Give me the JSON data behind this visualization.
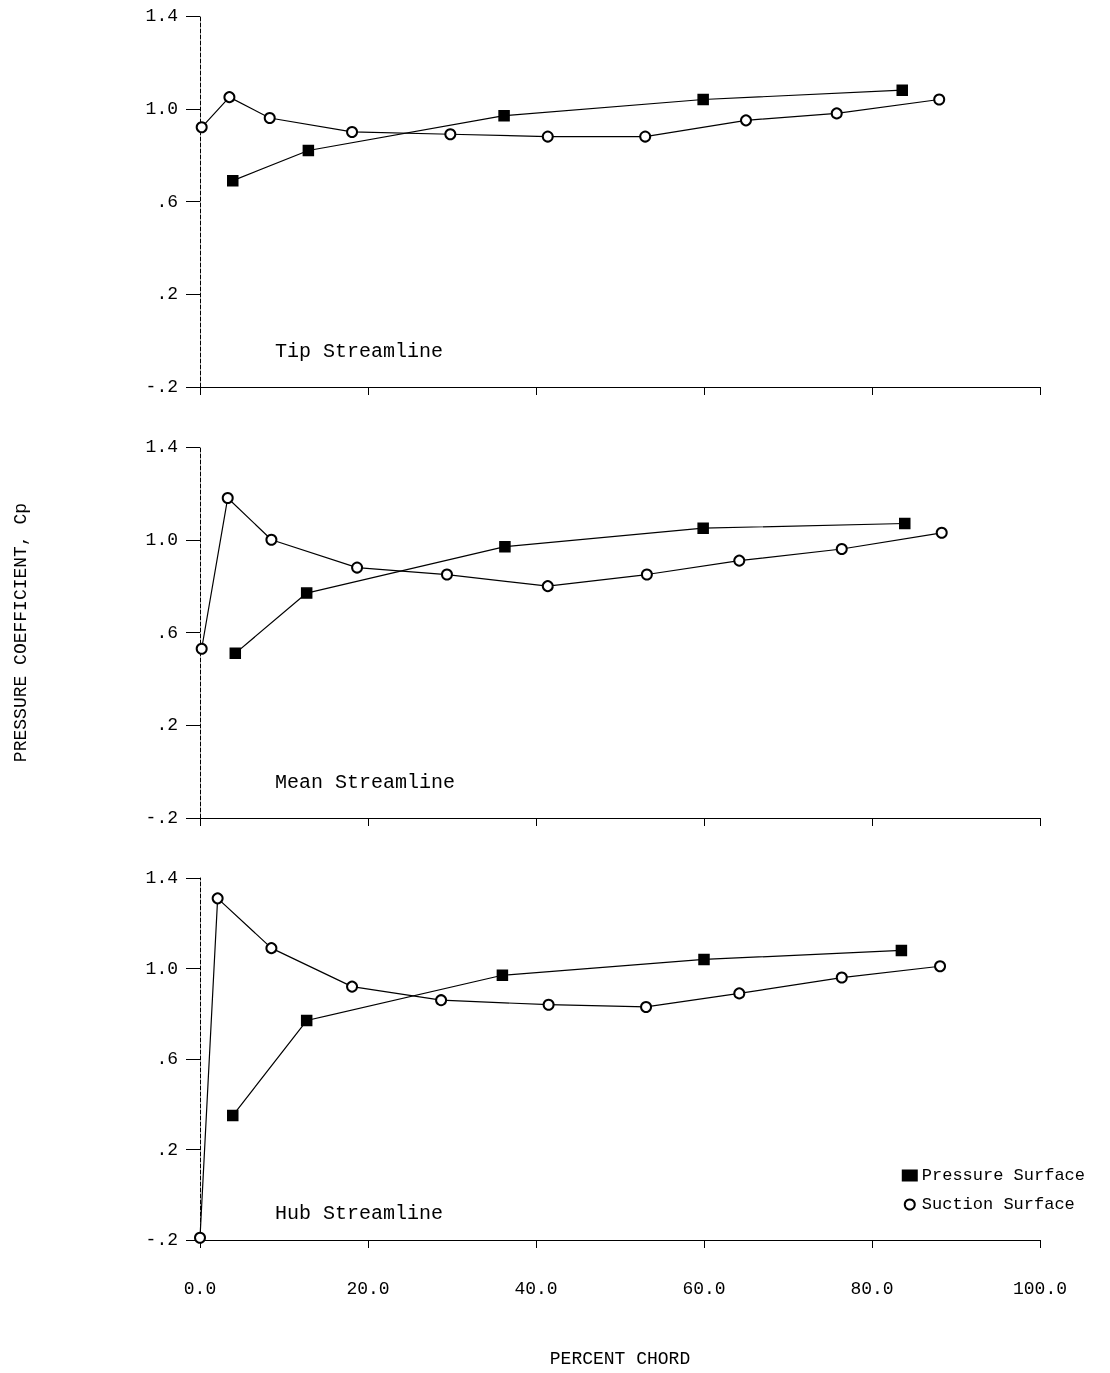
{
  "chart_data": [
    {
      "type": "line",
      "title": "Tip Streamline",
      "xlim": [
        0,
        100
      ],
      "xticks": [
        0,
        20,
        40,
        60,
        80,
        100
      ],
      "ylim": [
        -0.2,
        1.4
      ],
      "yticks": [
        {
          "value": -0.2,
          "label": "-.2"
        },
        {
          "value": 0.2,
          "label": ".2"
        },
        {
          "value": 0.6,
          "label": ".6"
        },
        {
          "value": 1.0,
          "label": "1.0"
        },
        {
          "value": 1.4,
          "label": "1.4"
        }
      ],
      "tick_labels": "y",
      "grid": false,
      "legend": false,
      "line_style": "solid",
      "series": [
        {
          "color": "#000000",
          "marker": "square",
          "x": [
            3.9,
            12.9,
            36.2,
            59.9,
            83.6
          ],
          "values": [
            0.69,
            0.82,
            0.97,
            1.04,
            1.08
          ]
        },
        {
          "color": "#000000",
          "marker": "circle",
          "x": [
            0.2,
            3.5,
            8.3,
            18.1,
            29.8,
            41.4,
            53,
            65,
            75.8,
            88
          ],
          "values": [
            0.92,
            1.05,
            0.96,
            0.9,
            0.89,
            0.88,
            0.88,
            0.95,
            0.98,
            1.04
          ]
        }
      ]
    },
    {
      "type": "line",
      "title": "Mean Streamline",
      "ylabel": "PRESSURE COEFFICIENT, Cp",
      "xlim": [
        0,
        100
      ],
      "xticks": [
        0,
        20,
        40,
        60,
        80,
        100
      ],
      "ylim": [
        -0.2,
        1.4
      ],
      "yticks": [
        {
          "value": -0.2,
          "label": "-.2"
        },
        {
          "value": 0.2,
          "label": ".2"
        },
        {
          "value": 0.6,
          "label": ".6"
        },
        {
          "value": 1.0,
          "label": "1.0"
        },
        {
          "value": 1.4,
          "label": "1.4"
        }
      ],
      "tick_labels": "y",
      "grid": false,
      "legend": false,
      "line_style": "solid",
      "series": [
        {
          "color": "#000000",
          "marker": "square",
          "x": [
            4.2,
            12.7,
            36.3,
            59.9,
            83.9
          ],
          "values": [
            0.51,
            0.77,
            0.97,
            1.05,
            1.07
          ]
        },
        {
          "color": "#000000",
          "marker": "circle",
          "x": [
            0.2,
            3.3,
            8.5,
            18.7,
            29.4,
            41.4,
            53.2,
            64.2,
            76.4,
            88.3
          ],
          "values": [
            0.53,
            1.18,
            1.0,
            0.88,
            0.85,
            0.8,
            0.85,
            0.91,
            0.96,
            1.03
          ]
        }
      ]
    },
    {
      "type": "line",
      "title": "Hub Streamline",
      "xlabel": "PERCENT CHORD",
      "xlim": [
        0,
        100
      ],
      "xticks": [
        {
          "value": 0,
          "label": "0.0"
        },
        {
          "value": 20,
          "label": "20.0"
        },
        {
          "value": 40,
          "label": "40.0"
        },
        {
          "value": 60,
          "label": "60.0"
        },
        {
          "value": 80,
          "label": "80.0"
        },
        {
          "value": 100,
          "label": "100.0"
        }
      ],
      "ylim": [
        -0.2,
        1.4
      ],
      "yticks": [
        {
          "value": -0.2,
          "label": "-.2"
        },
        {
          "value": 0.2,
          "label": ".2"
        },
        {
          "value": 0.6,
          "label": ".6"
        },
        {
          "value": 1.0,
          "label": "1.0"
        },
        {
          "value": 1.4,
          "label": "1.4"
        }
      ],
      "grid": false,
      "legend": "bottom right",
      "line_style": "solid",
      "series": [
        {
          "name": "Pressure Surface",
          "color": "#000000",
          "marker": "square",
          "x": [
            3.9,
            12.7,
            36,
            60,
            83.5
          ],
          "values": [
            0.35,
            0.77,
            0.97,
            1.04,
            1.08
          ]
        },
        {
          "name": "Suction Surface",
          "color": "#000000",
          "marker": "circle",
          "x": [
            0,
            2.1,
            8.5,
            18.1,
            28.7,
            41.5,
            53.1,
            64.2,
            76.4,
            88.1
          ],
          "values": [
            -0.19,
            1.31,
            1.09,
            0.92,
            0.86,
            0.84,
            0.83,
            0.89,
            0.96,
            1.01
          ]
        }
      ]
    }
  ]
}
